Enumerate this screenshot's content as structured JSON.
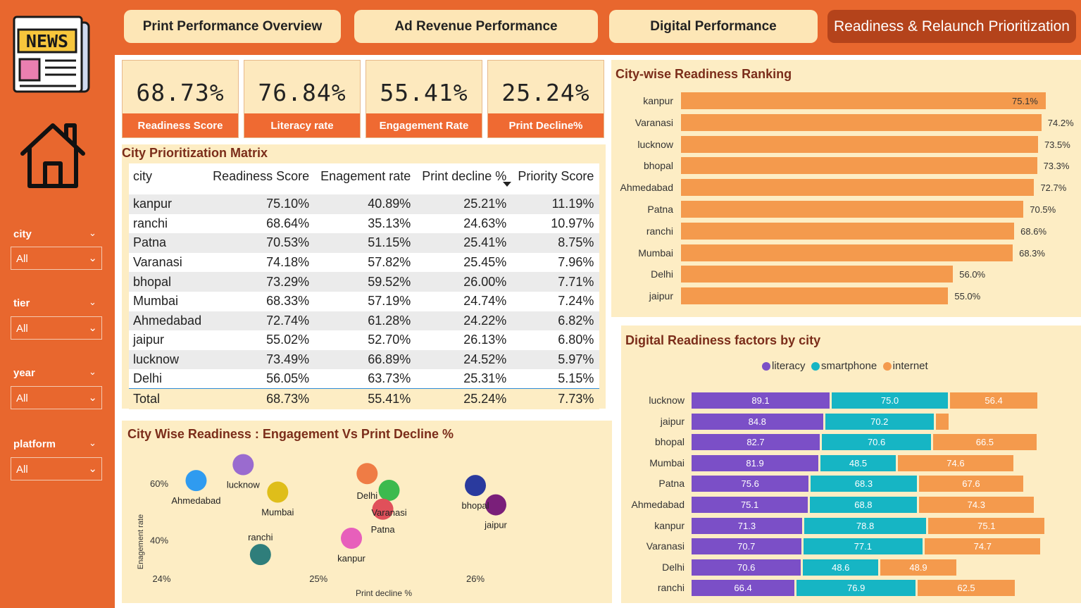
{
  "nav": {
    "tabs": [
      {
        "label": "Print Performance Overview"
      },
      {
        "label": "Ad Revenue Performance"
      },
      {
        "label": "Digital Performance"
      },
      {
        "label": "Readiness & Relaunch Prioritization"
      }
    ]
  },
  "logo": {
    "text": "NEWS"
  },
  "filters": {
    "city": {
      "label": "city",
      "value": "All"
    },
    "tier": {
      "label": "tier",
      "value": "All"
    },
    "year": {
      "label": "year",
      "value": "All"
    },
    "platform": {
      "label": "platform",
      "value": "All"
    }
  },
  "kpis": [
    {
      "value": "68.73%",
      "label": "Readiness Score"
    },
    {
      "value": "76.84%",
      "label": "Literacy rate"
    },
    {
      "value": "55.41%",
      "label": "Engagement Rate"
    },
    {
      "value": "25.24%",
      "label": "Print Decline%"
    }
  ],
  "matrix": {
    "title": "City Prioritization Matrix",
    "columns": [
      "city",
      "Readiness Score",
      "Enagement rate",
      "Print decline %",
      "Priority Score"
    ],
    "rows": [
      [
        "kanpur",
        "75.10%",
        "40.89%",
        "25.21%",
        "11.19%"
      ],
      [
        "ranchi",
        "68.64%",
        "35.13%",
        "24.63%",
        "10.97%"
      ],
      [
        "Patna",
        "70.53%",
        "51.15%",
        "25.41%",
        "8.75%"
      ],
      [
        "Varanasi",
        "74.18%",
        "57.82%",
        "25.45%",
        "7.96%"
      ],
      [
        "bhopal",
        "73.29%",
        "59.52%",
        "26.00%",
        "7.71%"
      ],
      [
        "Mumbai",
        "68.33%",
        "57.19%",
        "24.74%",
        "7.24%"
      ],
      [
        "Ahmedabad",
        "72.74%",
        "61.28%",
        "24.22%",
        "6.82%"
      ],
      [
        "jaipur",
        "55.02%",
        "52.70%",
        "26.13%",
        "6.80%"
      ],
      [
        "lucknow",
        "73.49%",
        "66.89%",
        "24.52%",
        "5.97%"
      ],
      [
        "Delhi",
        "56.05%",
        "63.73%",
        "25.31%",
        "5.15%"
      ]
    ],
    "total": [
      "Total",
      "68.73%",
      "55.41%",
      "25.24%",
      "7.73%"
    ]
  },
  "chart_data": [
    {
      "type": "bar",
      "title": "City-wise Readiness Ranking",
      "orientation": "horizontal",
      "categories": [
        "kanpur",
        "Varanasi",
        "lucknow",
        "bhopal",
        "Ahmedabad",
        "Patna",
        "ranchi",
        "Mumbai",
        "Delhi",
        "jaipur"
      ],
      "values": [
        75.1,
        74.2,
        73.5,
        73.3,
        72.7,
        70.5,
        68.6,
        68.3,
        56.0,
        55.0
      ],
      "labels": [
        "75.1%",
        "74.2%",
        "73.5%",
        "73.3%",
        "72.7%",
        "70.5%",
        "68.6%",
        "68.3%",
        "56.0%",
        "55.0%"
      ],
      "xlim": [
        0,
        75.1
      ]
    },
    {
      "type": "bar",
      "stacked": true,
      "orientation": "horizontal",
      "title": "Digital Readiness factors by city",
      "categories": [
        "lucknow",
        "jaipur",
        "bhopal",
        "Mumbai",
        "Patna",
        "Ahmedabad",
        "kanpur",
        "Varanasi",
        "Delhi",
        "ranchi"
      ],
      "series": [
        {
          "name": "literacy",
          "color": "#7b4fc7",
          "values": [
            89.1,
            84.8,
            82.7,
            81.9,
            75.6,
            75.1,
            71.3,
            70.7,
            70.6,
            66.4
          ]
        },
        {
          "name": "smartphone",
          "color": "#16b5c4",
          "values": [
            75.0,
            70.2,
            70.6,
            48.5,
            68.3,
            68.8,
            78.8,
            77.1,
            48.6,
            76.9
          ]
        },
        {
          "name": "internet",
          "color": "#f49a4d",
          "values": [
            56.4,
            8.1,
            66.5,
            74.6,
            67.6,
            74.3,
            75.1,
            74.7,
            48.9,
            62.5
          ]
        }
      ],
      "hidden_labels": [
        "internet-jaipur"
      ]
    },
    {
      "type": "scatter",
      "title": "City Wise Readiness : Engagement Vs Print Decline %",
      "xlabel": "Print decline %",
      "ylabel": "Enagement rate",
      "xticks": [
        "24%",
        "25%",
        "26%"
      ],
      "yticks": [
        "40%",
        "60%"
      ],
      "xlim": [
        23.98,
        26.35
      ],
      "ylim": [
        29.2,
        72.5
      ],
      "points": [
        {
          "name": "Ahmedabad",
          "x": 24.22,
          "y": 61.28,
          "color": "#2f9bf0"
        },
        {
          "name": "lucknow",
          "x": 24.52,
          "y": 66.89,
          "color": "#9a6bcf"
        },
        {
          "name": "Mumbai",
          "x": 24.74,
          "y": 57.19,
          "color": "#dfbe1a"
        },
        {
          "name": "ranchi",
          "x": 24.63,
          "y": 35.13,
          "color": "#2f7e7b"
        },
        {
          "name": "Delhi",
          "x": 25.31,
          "y": 63.73,
          "color": "#ef7c45"
        },
        {
          "name": "Varanasi",
          "x": 25.45,
          "y": 57.82,
          "color": "#3cba4e"
        },
        {
          "name": "Patna",
          "x": 25.41,
          "y": 51.15,
          "color": "#e0505a"
        },
        {
          "name": "kanpur",
          "x": 25.21,
          "y": 40.89,
          "color": "#e75fbb"
        },
        {
          "name": "bhopal",
          "x": 26.0,
          "y": 59.52,
          "color": "#2a3a9e"
        },
        {
          "name": "jaipur",
          "x": 26.13,
          "y": 52.7,
          "color": "#7a1f7a"
        }
      ]
    }
  ]
}
